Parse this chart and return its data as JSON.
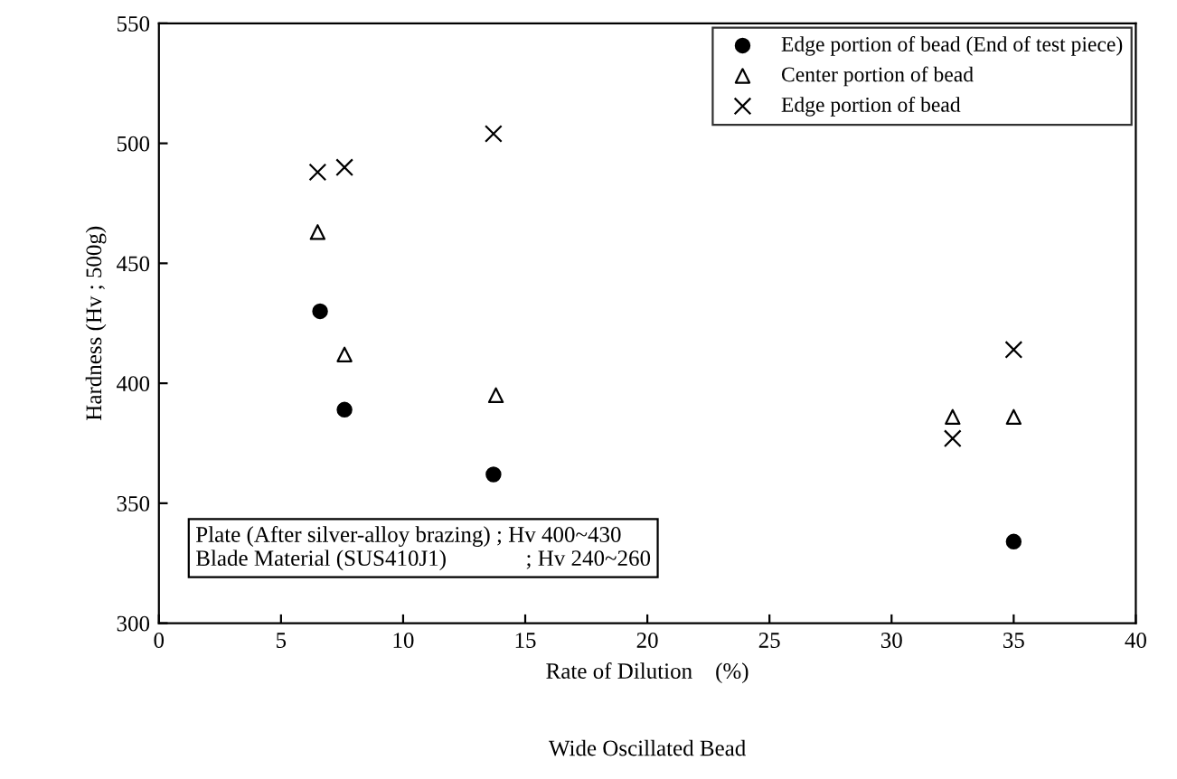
{
  "chart_data": {
    "type": "scatter",
    "xlabel": "Rate of Dilution    (%)",
    "ylabel": "Hardness (Hv ; 500g)",
    "xlim": [
      0,
      40
    ],
    "xticks": [
      0,
      5,
      10,
      15,
      20,
      25,
      30,
      35,
      40
    ],
    "ylim": [
      300,
      550
    ],
    "yticks": [
      300,
      350,
      400,
      450,
      500,
      550
    ],
    "grid": false,
    "legend": "top right",
    "series": [
      {
        "name": "Edge portion of bead (End of test piece)",
        "color": "#000000",
        "marker": "circle",
        "x": [
          6.6,
          7.6,
          13.7,
          35
        ],
        "values": [
          430,
          389,
          362,
          334
        ]
      },
      {
        "name": "Center portion of bead",
        "color": "#000000",
        "marker": "triangle",
        "x": [
          6.5,
          7.6,
          13.8,
          32.5,
          35
        ],
        "values": [
          463,
          412,
          395,
          386,
          386
        ]
      },
      {
        "name": "Edge portion of bead",
        "color": "#000000",
        "marker": "cross",
        "x": [
          6.5,
          7.6,
          13.7,
          32.5,
          35
        ],
        "values": [
          488,
          490,
          504,
          377,
          414
        ]
      }
    ],
    "annotations": [
      "Plate (After silver-alloy brazing) ; Hv 400~430",
      "Blade Material (SUS410J1)              ; Hv 240~260",
      "Wide Oscillated Bead"
    ]
  }
}
